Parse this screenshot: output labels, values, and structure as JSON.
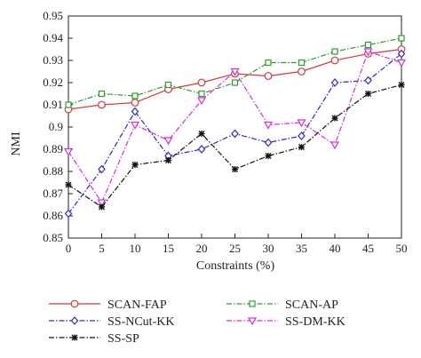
{
  "chart_data": {
    "type": "line",
    "xlabel": "Constraints (%)",
    "ylabel": "NMI",
    "x": [
      0,
      5,
      10,
      15,
      20,
      25,
      30,
      35,
      40,
      45,
      50
    ],
    "xticks": [
      "0",
      "5",
      "10",
      "15",
      "20",
      "25",
      "30",
      "35",
      "40",
      "45",
      "50"
    ],
    "yticks": [
      "0.85",
      "0.86",
      "0.87",
      "0.88",
      "0.89",
      "0.9",
      "0.91",
      "0.92",
      "0.93",
      "0.94",
      "0.95"
    ],
    "xlim": [
      0,
      50
    ],
    "ylim": [
      0.85,
      0.95
    ],
    "grid": false,
    "legend_position": "bottom",
    "series": [
      {
        "name": "SCAN-FAP",
        "color": "#d23a3a",
        "marker": "circle",
        "dash": "solid",
        "values": [
          0.908,
          0.91,
          0.911,
          0.917,
          0.92,
          0.924,
          0.923,
          0.925,
          0.93,
          0.933,
          0.935
        ]
      },
      {
        "name": "SCAN-AP",
        "color": "#2e9a2e",
        "marker": "square",
        "dash": "dashdot",
        "values": [
          0.91,
          0.915,
          0.914,
          0.919,
          0.915,
          0.92,
          0.929,
          0.929,
          0.934,
          0.937,
          0.94
        ]
      },
      {
        "name": "SS-NCut-KK",
        "color": "#2b2bc0",
        "marker": "diamond",
        "dash": "dashdot",
        "values": [
          0.861,
          0.881,
          0.907,
          0.887,
          0.89,
          0.897,
          0.893,
          0.896,
          0.92,
          0.921,
          0.933
        ]
      },
      {
        "name": "SS-DM-KK",
        "color": "#d230d2",
        "marker": "triangle-down",
        "dash": "dashdot",
        "values": [
          0.889,
          0.866,
          0.901,
          0.894,
          0.912,
          0.925,
          0.901,
          0.902,
          0.892,
          0.934,
          0.929
        ]
      },
      {
        "name": "SS-SP",
        "color": "#111111",
        "marker": "star",
        "dash": "dashdot",
        "values": [
          0.874,
          0.864,
          0.883,
          0.885,
          0.897,
          0.881,
          0.887,
          0.891,
          0.904,
          0.915,
          0.919
        ]
      }
    ]
  }
}
